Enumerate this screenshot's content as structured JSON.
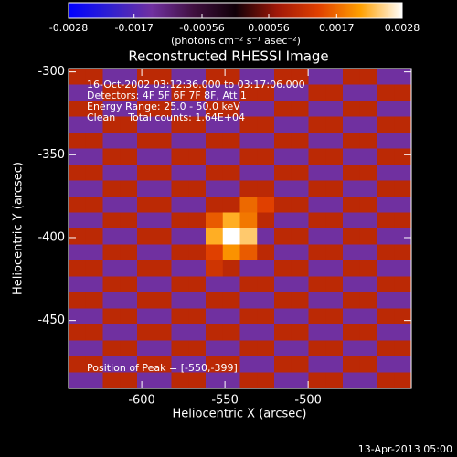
{
  "chart_data": {
    "type": "heatmap",
    "title": "Reconstructed RHESSI Image",
    "x_label": "Heliocentric X (arcsec)",
    "y_label": "Heliocentric Y (arcsec)",
    "annotations": [
      "16-Oct-2002 03:12:36.000 to 03:17:06.000",
      "Detectors: 4F 5F 6F 7F 8F, Att 1",
      "Energy Range: 25.0 - 50.0 keV",
      "Clean    Total counts: 1.64E+04"
    ],
    "peak_label": "Position of Peak = [-550,-399]",
    "footer": "13-Apr-2013 05:00",
    "colorbar_label": "(photons cm⁻² s⁻¹ asec⁻²)",
    "xlim": [
      -644,
      -438
    ],
    "xticks": [
      -600,
      -550,
      -500
    ],
    "ylim": [
      -491,
      -298
    ],
    "yticks": [
      -300,
      -350,
      -400,
      -450
    ],
    "clim": [
      -0.0028,
      0.0028
    ],
    "cticks": [
      -0.0028,
      -0.0017,
      -0.00056,
      0.00056,
      0.0017,
      0.0028
    ],
    "colormap": [
      "#0000ff",
      "#3020d0",
      "#7030a0",
      "#401040",
      "#100008",
      "#a01808",
      "#e04000",
      "#ffa000",
      "#ffffff"
    ],
    "z": [
      [
        0.001,
        0.001,
        -0.0014,
        -0.0014,
        0.001,
        0.001,
        -0.0014,
        -0.0014,
        0.001,
        0.001,
        -0.0014,
        -0.0014,
        0.001,
        0.001,
        -0.0014,
        -0.0014,
        0.001,
        0.001,
        -0.0014,
        -0.0014
      ],
      [
        -0.0014,
        -0.0014,
        0.001,
        0.001,
        -0.0014,
        -0.0014,
        0.001,
        0.001,
        -0.0014,
        -0.0014,
        0.001,
        0.001,
        -0.0014,
        -0.0014,
        0.001,
        0.001,
        -0.0014,
        -0.0014,
        0.001,
        0.001
      ],
      [
        0.001,
        0.001,
        -0.0014,
        -0.0014,
        0.001,
        0.001,
        -0.0014,
        -0.0014,
        0.001,
        0.001,
        -0.0014,
        -0.0014,
        0.001,
        0.001,
        -0.0014,
        -0.0014,
        0.001,
        0.001,
        -0.0014,
        -0.0014
      ],
      [
        -0.0014,
        -0.0014,
        0.001,
        0.001,
        -0.0014,
        -0.0014,
        0.001,
        0.001,
        -0.0014,
        -0.0014,
        0.001,
        0.001,
        -0.0014,
        -0.0014,
        0.001,
        0.001,
        -0.0014,
        -0.0014,
        0.001,
        0.001
      ],
      [
        0.001,
        0.001,
        -0.0014,
        -0.0014,
        0.001,
        0.001,
        -0.0014,
        -0.0014,
        0.001,
        0.001,
        -0.0014,
        -0.0014,
        0.001,
        0.001,
        -0.0014,
        -0.0014,
        0.001,
        0.001,
        -0.0014,
        -0.0014
      ],
      [
        -0.0014,
        -0.0014,
        0.001,
        0.001,
        -0.0014,
        -0.0014,
        0.001,
        0.001,
        -0.0014,
        -0.0014,
        0.001,
        0.001,
        -0.0014,
        -0.0014,
        0.001,
        0.001,
        -0.0014,
        -0.0014,
        0.001,
        0.001
      ],
      [
        0.001,
        0.001,
        -0.0014,
        -0.0014,
        0.001,
        0.001,
        -0.0014,
        -0.0014,
        0.001,
        0.001,
        -0.0014,
        -0.0014,
        0.001,
        0.001,
        -0.0014,
        -0.0014,
        0.001,
        0.001,
        -0.0014,
        -0.0014
      ],
      [
        -0.0014,
        -0.0014,
        0.001,
        0.001,
        -0.0014,
        -0.0014,
        0.001,
        0.001,
        -0.0014,
        -0.0014,
        0.001,
        0.001,
        -0.0014,
        -0.0014,
        0.001,
        0.001,
        -0.0014,
        -0.0014,
        0.001,
        0.001
      ],
      [
        0.001,
        0.001,
        -0.0014,
        -0.0014,
        0.001,
        0.001,
        -0.0014,
        -0.0014,
        0.001,
        0.001,
        0.0017,
        0.0014,
        0.001,
        0.001,
        -0.0014,
        -0.0014,
        0.001,
        0.001,
        -0.0014,
        -0.0014
      ],
      [
        -0.0014,
        -0.0014,
        0.001,
        0.001,
        -0.0014,
        -0.0014,
        0.001,
        0.001,
        0.0016,
        0.0022,
        0.0018,
        0.001,
        -0.0014,
        -0.0014,
        0.001,
        0.001,
        -0.0014,
        -0.0014,
        0.001,
        0.001
      ],
      [
        0.001,
        0.001,
        -0.0014,
        -0.0014,
        0.001,
        0.001,
        -0.0014,
        -0.0014,
        0.0022,
        0.0028,
        0.0024,
        -0.0014,
        0.001,
        0.001,
        -0.0014,
        -0.0014,
        0.001,
        0.001,
        -0.0014,
        -0.0014
      ],
      [
        -0.0014,
        -0.0014,
        0.001,
        0.001,
        -0.0014,
        -0.0014,
        0.001,
        0.001,
        0.0014,
        0.002,
        0.0016,
        0.001,
        -0.0014,
        -0.0014,
        0.001,
        0.001,
        -0.0014,
        -0.0014,
        0.001,
        0.001
      ],
      [
        0.001,
        0.001,
        -0.0014,
        -0.0014,
        0.001,
        0.001,
        -0.0014,
        -0.0014,
        0.0012,
        0.001,
        -0.0014,
        -0.0014,
        0.001,
        0.001,
        -0.0014,
        -0.0014,
        0.001,
        0.001,
        -0.0014,
        -0.0014
      ],
      [
        -0.0014,
        -0.0014,
        0.001,
        0.001,
        -0.0014,
        -0.0014,
        0.001,
        0.001,
        -0.0014,
        -0.0014,
        0.001,
        0.001,
        -0.0014,
        -0.0014,
        0.001,
        0.001,
        -0.0014,
        -0.0014,
        0.001,
        0.001
      ],
      [
        0.001,
        0.001,
        -0.0014,
        -0.0014,
        0.001,
        0.001,
        -0.0014,
        -0.0014,
        0.001,
        0.001,
        -0.0014,
        -0.0014,
        0.001,
        0.001,
        -0.0014,
        -0.0014,
        0.001,
        0.001,
        -0.0014,
        -0.0014
      ],
      [
        -0.0014,
        -0.0014,
        0.001,
        0.001,
        -0.0014,
        -0.0014,
        0.001,
        0.001,
        -0.0014,
        -0.0014,
        0.001,
        0.001,
        -0.0014,
        -0.0014,
        0.001,
        0.001,
        -0.0014,
        -0.0014,
        0.001,
        0.001
      ],
      [
        0.001,
        0.001,
        -0.0014,
        -0.0014,
        0.001,
        0.001,
        -0.0014,
        -0.0014,
        0.001,
        0.001,
        -0.0014,
        -0.0014,
        0.001,
        0.001,
        -0.0014,
        -0.0014,
        0.001,
        0.001,
        -0.0014,
        -0.0014
      ],
      [
        -0.0014,
        -0.0014,
        0.001,
        0.001,
        -0.0014,
        -0.0014,
        0.001,
        0.001,
        -0.0014,
        -0.0014,
        0.001,
        0.001,
        -0.0014,
        -0.0014,
        0.001,
        0.001,
        -0.0014,
        -0.0014,
        0.001,
        0.001
      ],
      [
        0.001,
        0.001,
        -0.0014,
        -0.0014,
        0.001,
        0.001,
        -0.0014,
        -0.0014,
        0.001,
        0.001,
        -0.0014,
        -0.0014,
        0.001,
        0.001,
        -0.0014,
        -0.0014,
        0.001,
        0.001,
        -0.0014,
        -0.0014
      ],
      [
        -0.0014,
        -0.0014,
        0.001,
        0.001,
        -0.0014,
        -0.0014,
        0.001,
        0.001,
        -0.0014,
        -0.0014,
        0.001,
        0.001,
        -0.0014,
        -0.0014,
        0.001,
        0.001,
        -0.0014,
        -0.0014,
        0.001,
        0.001
      ]
    ]
  }
}
